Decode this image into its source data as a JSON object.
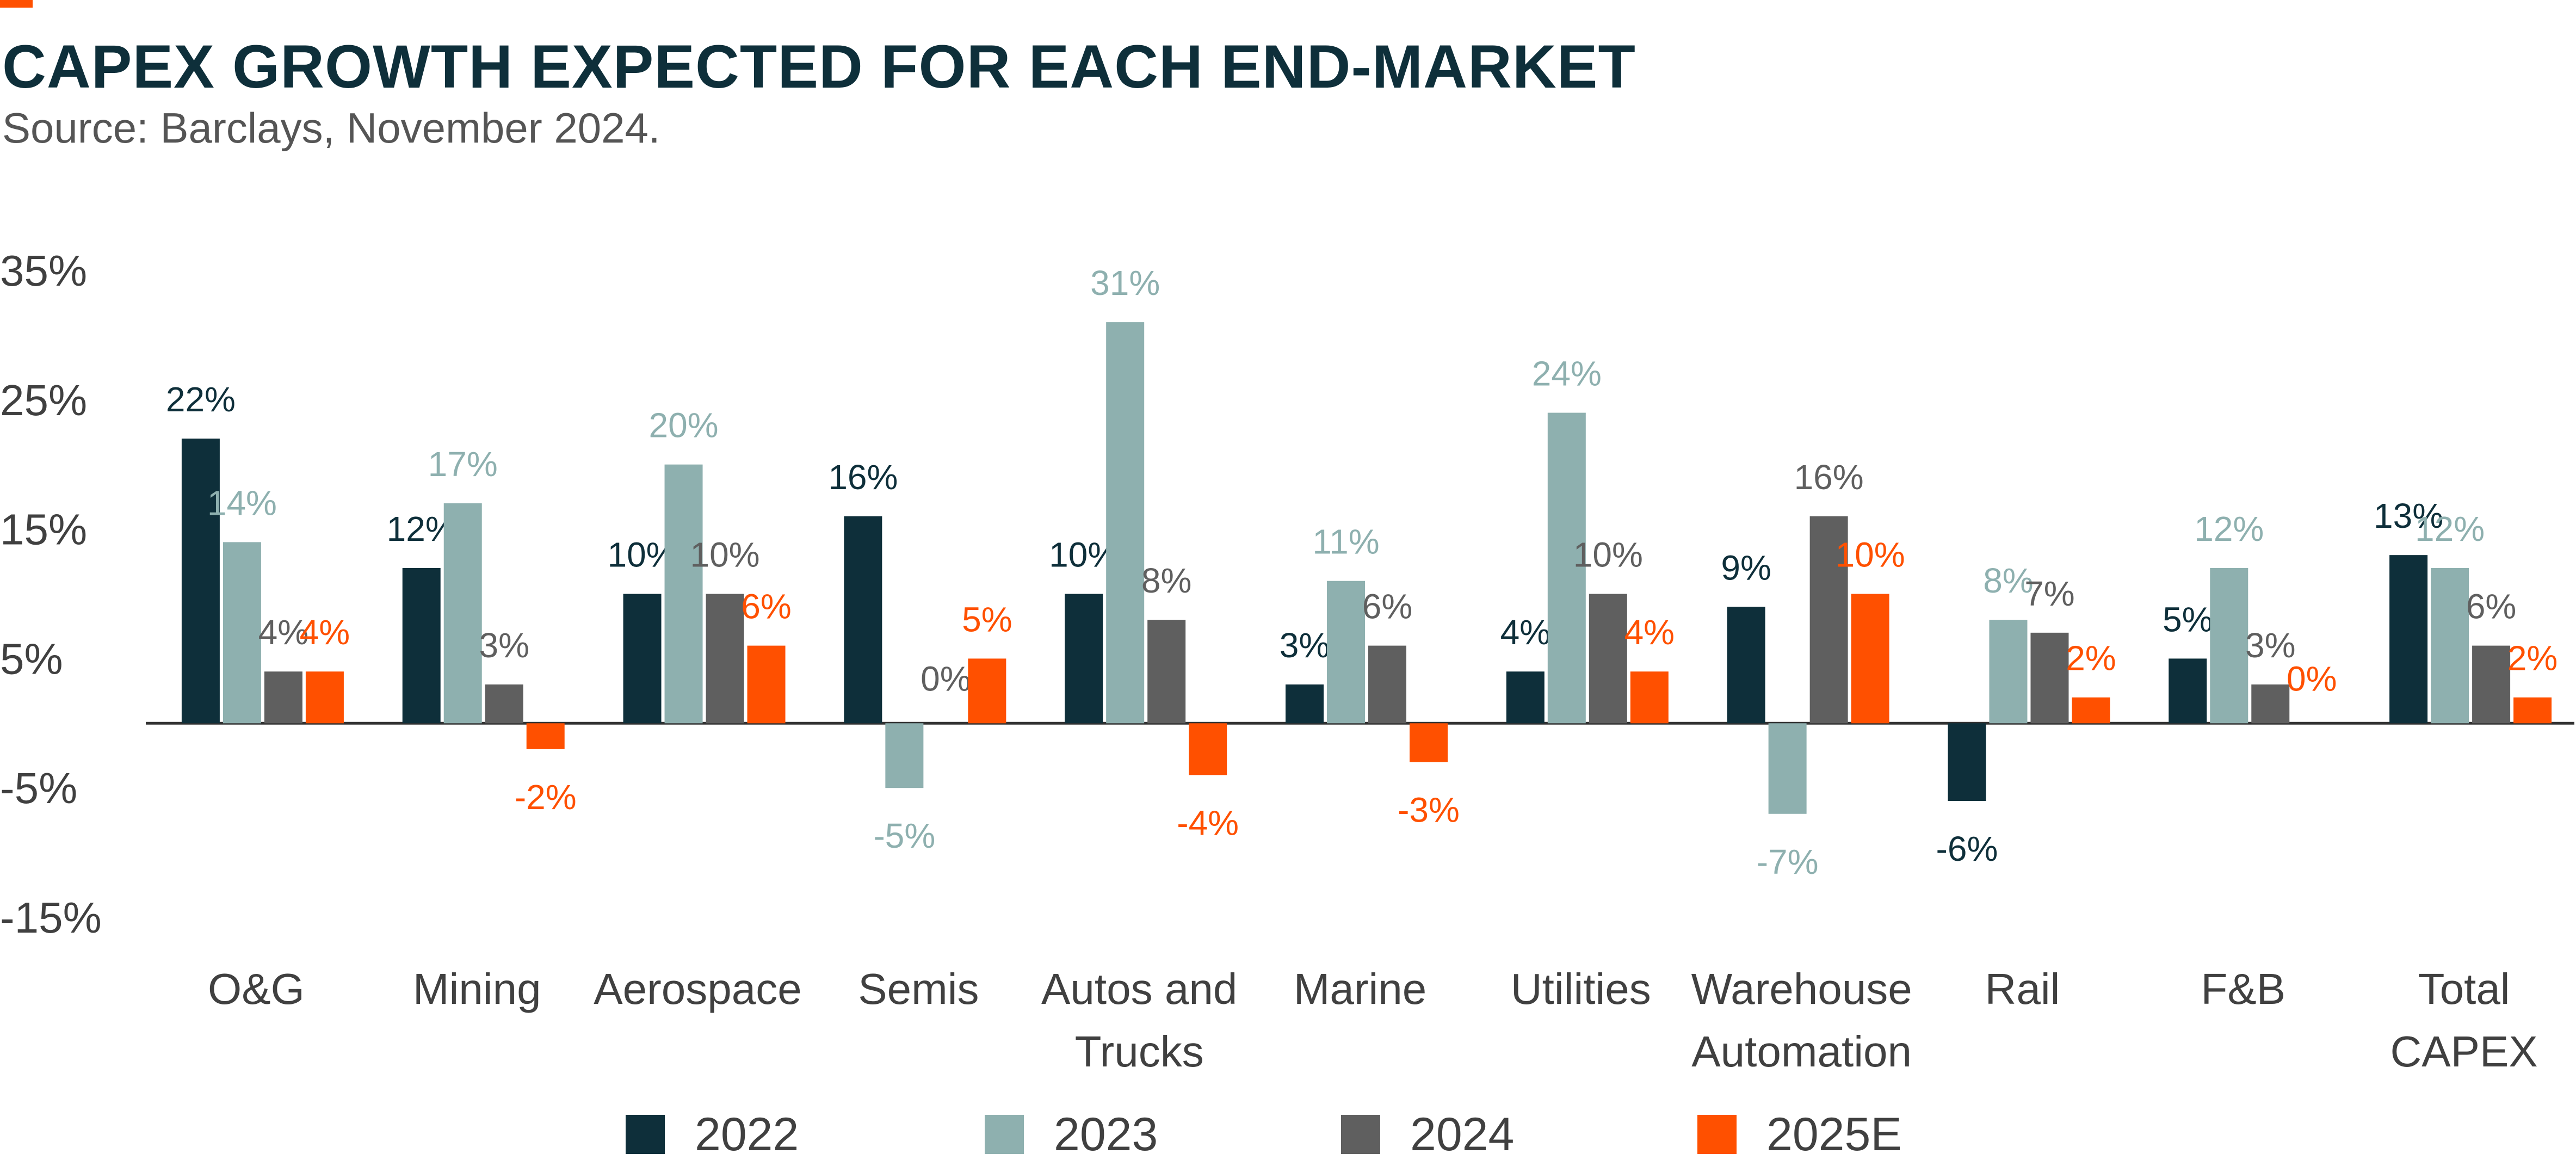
{
  "title": "CAPEX GROWTH EXPECTED FOR EACH END-MARKET",
  "subtitle": "Source: Barclays, November 2024.",
  "colors": {
    "accent": "#ff5000",
    "2022": "#0e2f3a",
    "2023": "#8eb0af",
    "2024": "#5f5f5f",
    "2025E": "#ff5000"
  },
  "chart_data": {
    "type": "bar",
    "categories": [
      [
        "O&G"
      ],
      [
        "Mining"
      ],
      [
        "Aerospace"
      ],
      [
        "Semis"
      ],
      [
        "Autos and",
        "Trucks"
      ],
      [
        "Marine"
      ],
      [
        "Utilities"
      ],
      [
        "Warehouse",
        "Automation"
      ],
      [
        "Rail"
      ],
      [
        "F&B"
      ],
      [
        "Total",
        "CAPEX"
      ]
    ],
    "series": [
      {
        "name": "2022",
        "values": [
          22,
          12,
          10,
          16,
          10,
          3,
          4,
          9,
          -6,
          5,
          13
        ],
        "labels": [
          "22%",
          "12%",
          "10%",
          "16%",
          "10%",
          "3%",
          "4%",
          "9%",
          "-6%",
          "5%",
          "13%"
        ]
      },
      {
        "name": "2023",
        "values": [
          14,
          17,
          20,
          -5,
          31,
          11,
          24,
          -7,
          8,
          12,
          12
        ],
        "labels": [
          "14%",
          "17%",
          "20%",
          "-5%",
          "31%",
          "11%",
          "24%",
          "-7%",
          "8%",
          "12%",
          "12%"
        ]
      },
      {
        "name": "2024",
        "values": [
          4,
          3,
          10,
          0,
          8,
          6,
          10,
          16,
          7,
          3,
          6
        ],
        "labels": [
          "4%",
          "3%",
          "10%",
          "0%",
          "8%",
          "6%",
          "10%",
          "16%",
          "7%",
          "3%",
          "6%"
        ]
      },
      {
        "name": "2025E",
        "values": [
          4,
          -2,
          6,
          5,
          -4,
          -3,
          4,
          10,
          2,
          0,
          2
        ],
        "labels": [
          "4%",
          "-2%",
          "6%",
          "5%",
          "-4%",
          "-3%",
          "4%",
          "10%",
          "2%",
          "0%",
          "2%"
        ]
      }
    ],
    "yticks": [
      35,
      25,
      15,
      5,
      -5,
      -15
    ],
    "ytick_labels": [
      "35%",
      "25%",
      "15%",
      "5%",
      "-5%",
      "-15%"
    ],
    "ylim": [
      -15,
      35
    ],
    "grid": false,
    "legend_position": "bottom"
  }
}
